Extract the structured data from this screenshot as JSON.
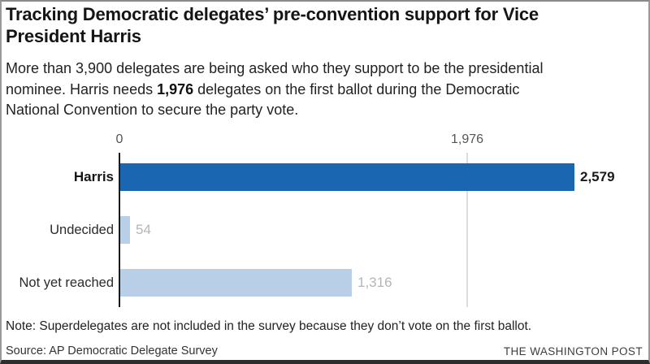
{
  "header": {
    "title_line1": "Tracking Democratic delegates’ pre-convention support for Vice",
    "title_line2": "President Harris",
    "subtitle_line1": "More than 3,900 delegates are being asked who they support to be the presidential",
    "subtitle_line2_pre": "nominee. Harris needs ",
    "subtitle_line2_bold": "1,976",
    "subtitle_line2_post": " delegates on the first ballot during the Democratic",
    "subtitle_line3": "National Convention to secure the party vote."
  },
  "chart_data": {
    "type": "bar",
    "orientation": "horizontal",
    "title": "Tracking Democratic delegates’ pre-convention support for Vice President Harris",
    "categories": [
      "Harris",
      "Undecided",
      "Not yet reached"
    ],
    "values": [
      2579,
      54,
      1316
    ],
    "xlabel": "",
    "ylabel": "",
    "xlim": [
      0,
      3020
    ],
    "grid": "single vertical reference line at 1,976",
    "legend": "none",
    "axis_ticks": [
      {
        "value": 0,
        "label": "0"
      },
      {
        "value": 1976,
        "label": "1,976"
      }
    ],
    "bars": [
      {
        "label": "Harris",
        "value": 2579,
        "display_value": "2,579",
        "emphasized": true
      },
      {
        "label": "Undecided",
        "value": 54,
        "display_value": "54",
        "emphasized": false
      },
      {
        "label": "Not yet reached",
        "value": 1316,
        "display_value": "1,316",
        "emphasized": false
      }
    ],
    "colors": {
      "bar_emphasized": "#1a66b0",
      "bar_muted": "#b9cfe8",
      "value_emphasized": "#1a1a1a",
      "value_muted": "#b5b5b5"
    }
  },
  "footer": {
    "note": "Note: Superdelegates are not included in the survey because they don’t vote on the first ballot.",
    "source": "Source: AP Democratic Delegate Survey",
    "credit": "THE WASHINGTON POST"
  }
}
